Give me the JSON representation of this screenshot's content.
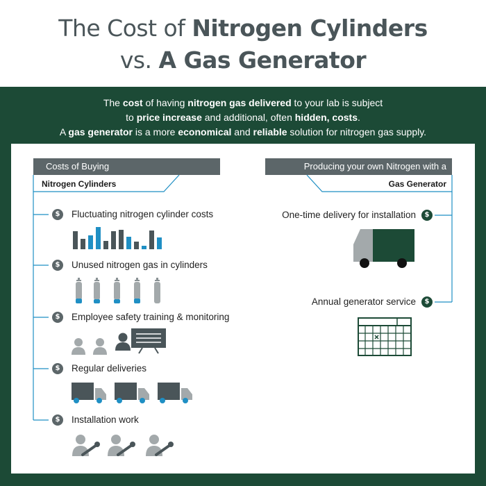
{
  "title": {
    "line1_prefix": "The Cost of ",
    "line1_bold": "Nitrogen Cylinders",
    "line2_prefix": "vs. ",
    "line2_bold": "A Gas Generator"
  },
  "intro": {
    "l1a": "The ",
    "l1b": "cost",
    "l1c": " of having ",
    "l1d": "nitrogen gas delivered",
    "l1e": " to your lab is subject",
    "l2a": "to ",
    "l2b": "price increase",
    "l2c": " and additional, often ",
    "l2d": "hidden, costs",
    "l2e": ".",
    "l3a": "A ",
    "l3b": "gas generator",
    "l3c": " is a more ",
    "l3d": "economical",
    "l3e": " and ",
    "l3f": "reliable",
    "l3g": " solution for nitrogen gas supply."
  },
  "left": {
    "header": "Costs of Buying",
    "subheader": "Nitrogen Cylinders",
    "items": [
      {
        "label": "Fluctuating nitrogen cylinder costs",
        "icon": "bar-chart-icon"
      },
      {
        "label": "Unused nitrogen gas in cylinders",
        "icon": "gas-cylinder-icon"
      },
      {
        "label": "Employee safety training & monitoring",
        "icon": "training-icon"
      },
      {
        "label": "Regular deliveries",
        "icon": "delivery-truck-icon"
      },
      {
        "label": "Installation work",
        "icon": "worker-wrench-icon"
      }
    ]
  },
  "right": {
    "header": "Producing your own Nitrogen with a",
    "subheader": "Gas Generator",
    "items": [
      {
        "label": "One-time delivery for installation",
        "icon": "delivery-truck-icon"
      },
      {
        "label": "Annual generator service",
        "icon": "calendar-icon"
      }
    ]
  },
  "dollar_symbol": "$",
  "colors": {
    "dark_green": "#1c4a36",
    "grey": "#5c6669",
    "blue": "#1f8fc4",
    "title_grey": "#4a5559"
  }
}
